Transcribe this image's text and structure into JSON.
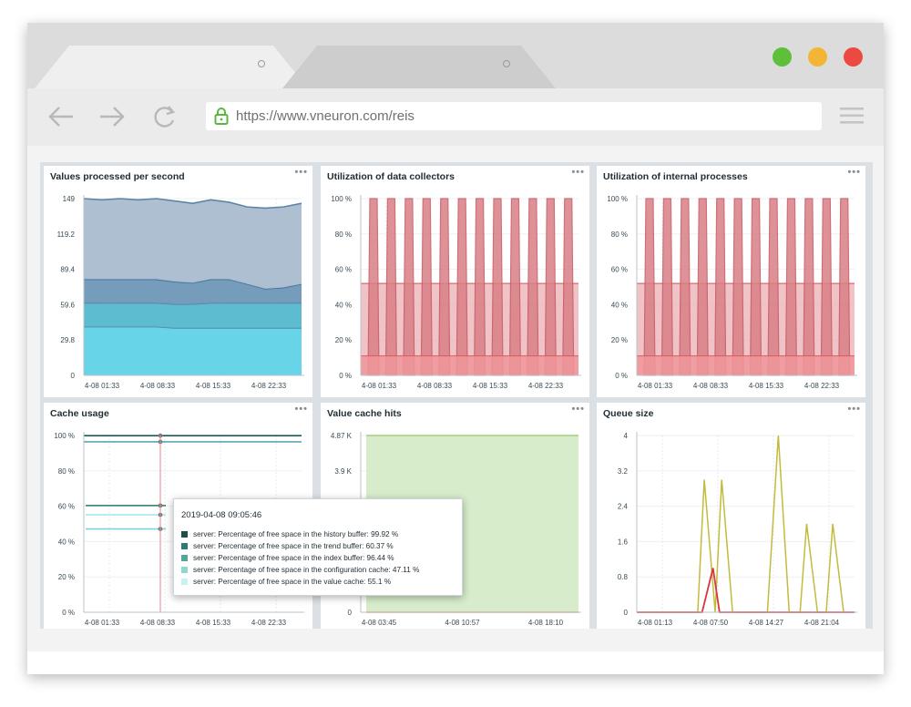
{
  "browser": {
    "url": "https://www.vneuron.com/reis",
    "traffic_lights": [
      "#5dbf3a",
      "#f2b636",
      "#ec4a41"
    ],
    "icons": [
      "back-arrow-icon",
      "forward-arrow-icon",
      "reload-icon",
      "lock-icon",
      "hamburger-menu-icon"
    ]
  },
  "widgets": [
    {
      "title": "Values processed per second",
      "chart_data": {
        "type": "area",
        "stacked": true,
        "yticks": [
          "149",
          "119.2",
          "89.4",
          "59.6",
          "29.8",
          "0"
        ],
        "ylim": [
          0,
          149
        ],
        "xticks": [
          "4-08 01:33",
          "4-08 08:33",
          "4-08 15:33",
          "4-08 22:33"
        ],
        "series": [
          {
            "color": "#5fd2e6",
            "values": [
              41,
              41,
              41,
              41,
              41,
              40,
              40,
              40,
              40,
              40,
              40,
              40,
              40
            ]
          },
          {
            "color": "#54b8cc",
            "values": [
              20,
              20,
              20,
              20,
              20,
              20,
              20,
              21,
              21,
              21,
              21,
              21,
              21
            ]
          },
          {
            "color": "#6f97b8",
            "values": [
              20,
              20,
              20,
              20,
              20,
              19,
              18,
              20,
              20,
              16,
              12,
              13,
              16
            ]
          },
          {
            "color": "#a9bccd",
            "values": [
              68,
              67,
              68,
              67,
              68,
              68,
              67,
              67,
              65,
              65,
              68,
              68,
              68
            ]
          }
        ]
      }
    },
    {
      "title": "Utilization of data collectors",
      "chart_data": {
        "type": "area",
        "yticks": [
          "100 %",
          "80 %",
          "60 %",
          "40 %",
          "20 %",
          "0 %"
        ],
        "ylim": [
          0,
          100
        ],
        "xticks": [
          "4-08 01:33",
          "4-08 08:33",
          "4-08 15:33",
          "4-08 22:33"
        ],
        "series": [
          {
            "color": "#d97f86",
            "peak": 100,
            "pulses": 12
          },
          {
            "color": "#e9aaaf",
            "level": 52
          },
          {
            "color": "#ef9699",
            "level": 11
          }
        ]
      }
    },
    {
      "title": "Utilization of internal processes",
      "chart_data": {
        "type": "area",
        "yticks": [
          "100 %",
          "80 %",
          "60 %",
          "40 %",
          "20 %",
          "0 %"
        ],
        "ylim": [
          0,
          100
        ],
        "xticks": [
          "4-08 01:33",
          "4-08 08:33",
          "4-08 15:33",
          "4-08 22:33"
        ],
        "series": [
          {
            "color": "#d97f86",
            "peak": 100,
            "pulses": 12
          },
          {
            "color": "#e9aaaf",
            "level": 52
          },
          {
            "color": "#ef9699",
            "level": 11
          }
        ]
      }
    },
    {
      "title": "Cache usage",
      "chart_data": {
        "type": "line",
        "yticks": [
          "100 %",
          "80 %",
          "60 %",
          "40 %",
          "20 %",
          "0 %"
        ],
        "ylim": [
          0,
          100
        ],
        "xticks": [
          "4-08 01:33",
          "4-08 08:33",
          "4-08 15:33",
          "4-08 22:33"
        ],
        "series": [
          {
            "color": "#1b5a53",
            "value": 99.92
          },
          {
            "color": "#5ba6b1",
            "value": 96.44
          },
          {
            "color": "#2a7a72",
            "value": 60.37
          },
          {
            "color": "#a7e8ef",
            "value": 55.1
          },
          {
            "color": "#7fd3dc",
            "value": 47.11
          }
        ]
      }
    },
    {
      "title": "Value cache hits",
      "chart_data": {
        "type": "area",
        "yticks": [
          "4.87 K",
          "3.9 K",
          "",
          "",
          "",
          "0"
        ],
        "ylim": [
          0,
          4870
        ],
        "xticks": [
          "4-08 03:45",
          "4-08 10:57",
          "4-08 18:10"
        ],
        "series": [
          {
            "color": "#d6eccb",
            "line": "#a6ce7f",
            "value": 4870
          }
        ]
      }
    },
    {
      "title": "Queue size",
      "chart_data": {
        "type": "line",
        "yticks": [
          "4",
          "3.2",
          "2.4",
          "1.6",
          "0.8",
          "0"
        ],
        "ylim": [
          0,
          4
        ],
        "xticks": [
          "4-08 01:13",
          "4-08 07:50",
          "4-08 14:27",
          "4-08 21:04"
        ],
        "series": [
          {
            "color": "#c2bb3c",
            "points": [
              [
                0,
                0
              ],
              [
                0.28,
                0
              ],
              [
                0.31,
                3
              ],
              [
                0.36,
                0
              ],
              [
                0.39,
                3
              ],
              [
                0.44,
                0
              ],
              [
                0.6,
                0
              ],
              [
                0.65,
                4
              ],
              [
                0.7,
                0
              ],
              [
                0.75,
                0
              ],
              [
                0.78,
                2
              ],
              [
                0.83,
                0
              ],
              [
                0.87,
                0
              ],
              [
                0.9,
                2
              ],
              [
                0.95,
                0
              ]
            ]
          },
          {
            "color": "#d9353f",
            "points": [
              [
                0,
                0
              ],
              [
                0.3,
                0
              ],
              [
                0.35,
                1
              ],
              [
                0.38,
                0
              ],
              [
                1,
                0
              ]
            ]
          }
        ]
      }
    }
  ],
  "tooltip": {
    "time": "2019-04-08 09:05:46",
    "rows": [
      {
        "color": "#1b4f49",
        "label": "server: Percentage of free space in the history buffer: 99.92 %"
      },
      {
        "color": "#2f7a72",
        "label": "server: Percentage of free space in the trend buffer: 60.37 %"
      },
      {
        "color": "#53a59b",
        "label": "server: Percentage of free space in the index buffer: 96.44 %"
      },
      {
        "color": "#8fd8cf",
        "label": "server: Percentage of free space in the configuration cache: 47.11 %"
      },
      {
        "color": "#c5f4ef",
        "label": "server: Percentage of free space in the value cache: 55.1 %"
      }
    ]
  }
}
